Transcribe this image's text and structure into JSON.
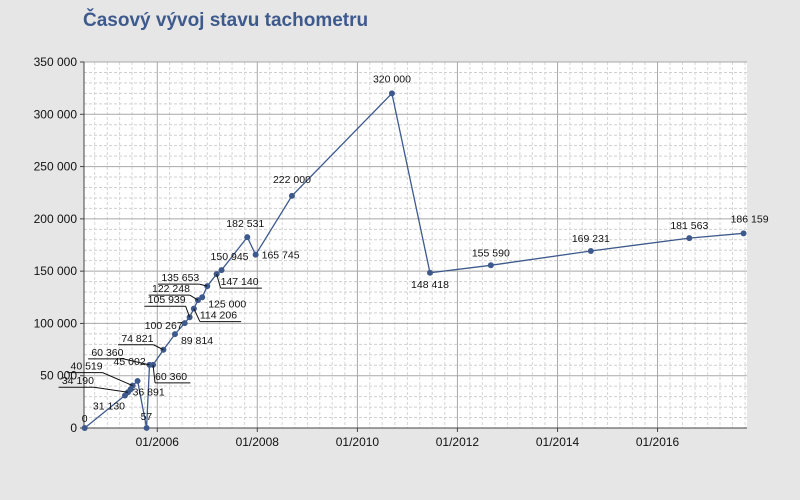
{
  "chart_data": {
    "type": "line",
    "title": "Časový vývoj stavu tachometru",
    "xlabel": "",
    "ylabel": "",
    "ylim": [
      0,
      350000
    ],
    "xlim": [
      "2004-07-15",
      "2017-10-15"
    ],
    "grid": true,
    "y_ticks": [
      "0",
      "50 000",
      "100 000",
      "150 000",
      "200 000",
      "250 000",
      "300 000",
      "350 000"
    ],
    "x_ticks": [
      {
        "date": "2006-01-01",
        "label": "01/2006"
      },
      {
        "date": "2008-01-01",
        "label": "01/2008"
      },
      {
        "date": "2010-01-01",
        "label": "01/2010"
      },
      {
        "date": "2012-01-01",
        "label": "01/2012"
      },
      {
        "date": "2014-01-01",
        "label": "01/2014"
      },
      {
        "date": "2016-01-01",
        "label": "01/2016"
      }
    ],
    "series": [
      {
        "color": "#3e5a8c",
        "points": [
          {
            "x": "2004-07-20",
            "y": 0,
            "label": "0"
          },
          {
            "x": "2005-05-10",
            "y": 31130,
            "label": "31 130"
          },
          {
            "x": "2005-06-01",
            "y": 34190,
            "label": "34 190"
          },
          {
            "x": "2005-06-20",
            "y": 36891,
            "label": "36 891"
          },
          {
            "x": "2005-07-05",
            "y": 40519,
            "label": "40 519"
          },
          {
            "x": "2005-08-10",
            "y": 45002,
            "label": "45 002"
          },
          {
            "x": "2005-10-15",
            "y": 57,
            "label": "57"
          },
          {
            "x": "2005-11-05",
            "y": 60360,
            "label": "60 360"
          },
          {
            "x": "2005-12-01",
            "y": 60360,
            "label": "60 360"
          },
          {
            "x": "2006-02-15",
            "y": 74821,
            "label": "74 821"
          },
          {
            "x": "2006-05-10",
            "y": 89814,
            "label": "89 814"
          },
          {
            "x": "2006-07-20",
            "y": 100267,
            "label": "100 267"
          },
          {
            "x": "2006-08-25",
            "y": 105939,
            "label": "105 939"
          },
          {
            "x": "2006-09-25",
            "y": 114206,
            "label": "114 206"
          },
          {
            "x": "2006-10-25",
            "y": 122248,
            "label": "122 248"
          },
          {
            "x": "2006-11-25",
            "y": 125000,
            "label": "125 000"
          },
          {
            "x": "2007-01-01",
            "y": 135653,
            "label": "135 653"
          },
          {
            "x": "2007-03-10",
            "y": 147140,
            "label": "147 140"
          },
          {
            "x": "2007-04-15",
            "y": 150945,
            "label": "150 945"
          },
          {
            "x": "2007-10-20",
            "y": 182531,
            "label": "182 531"
          },
          {
            "x": "2007-12-20",
            "y": 165745,
            "label": "165 745"
          },
          {
            "x": "2008-09-10",
            "y": 222000,
            "label": "222 000"
          },
          {
            "x": "2010-09-10",
            "y": 320000,
            "label": "320 000"
          },
          {
            "x": "2011-06-15",
            "y": 148418,
            "label": "148 418"
          },
          {
            "x": "2012-09-01",
            "y": 155590,
            "label": "155 590"
          },
          {
            "x": "2014-09-01",
            "y": 169231,
            "label": "169 231"
          },
          {
            "x": "2016-08-20",
            "y": 181563,
            "label": "181 563"
          },
          {
            "x": "2017-09-20",
            "y": 186159,
            "label": "186 159"
          }
        ]
      }
    ]
  }
}
